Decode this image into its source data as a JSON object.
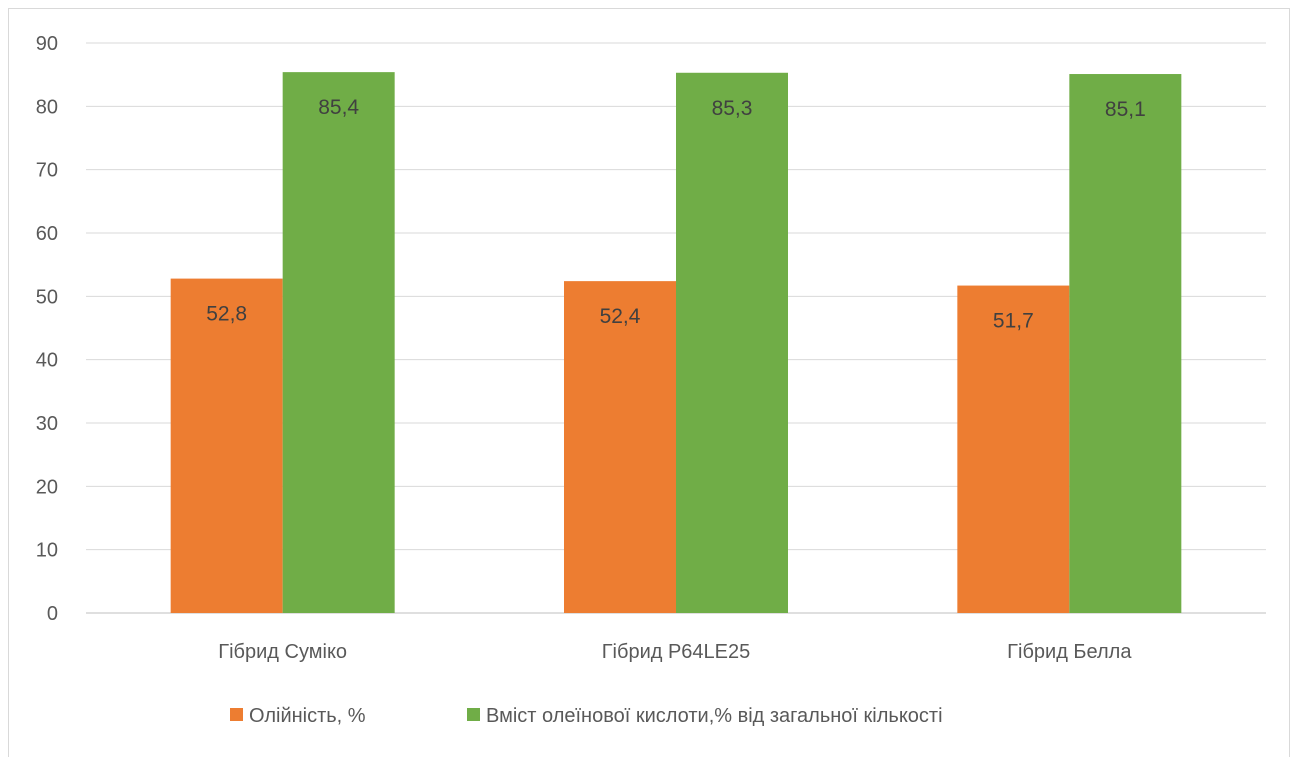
{
  "chart_data": {
    "type": "bar",
    "title": "",
    "xlabel": "",
    "ylabel": "",
    "categories": [
      "Гібрид Суміко",
      "Гібрид P64LE25",
      "Гібрид Белла"
    ],
    "series": [
      {
        "name": "Олійність, %",
        "color": "#ed7d31",
        "values": [
          52.8,
          52.4,
          51.7
        ],
        "labels": [
          "52,8",
          "52,4",
          "51,7"
        ]
      },
      {
        "name": "Вміст олеїнової кислоти,% від загальної кількості",
        "color": "#70ad47",
        "values": [
          85.4,
          85.3,
          85.1
        ],
        "labels": [
          "85,4",
          "85,3",
          "85,1"
        ]
      }
    ],
    "ylim": [
      0,
      90
    ],
    "yticks": [
      0,
      10,
      20,
      30,
      40,
      50,
      60,
      70,
      80,
      90
    ],
    "grid": true,
    "legend_position": "bottom"
  }
}
